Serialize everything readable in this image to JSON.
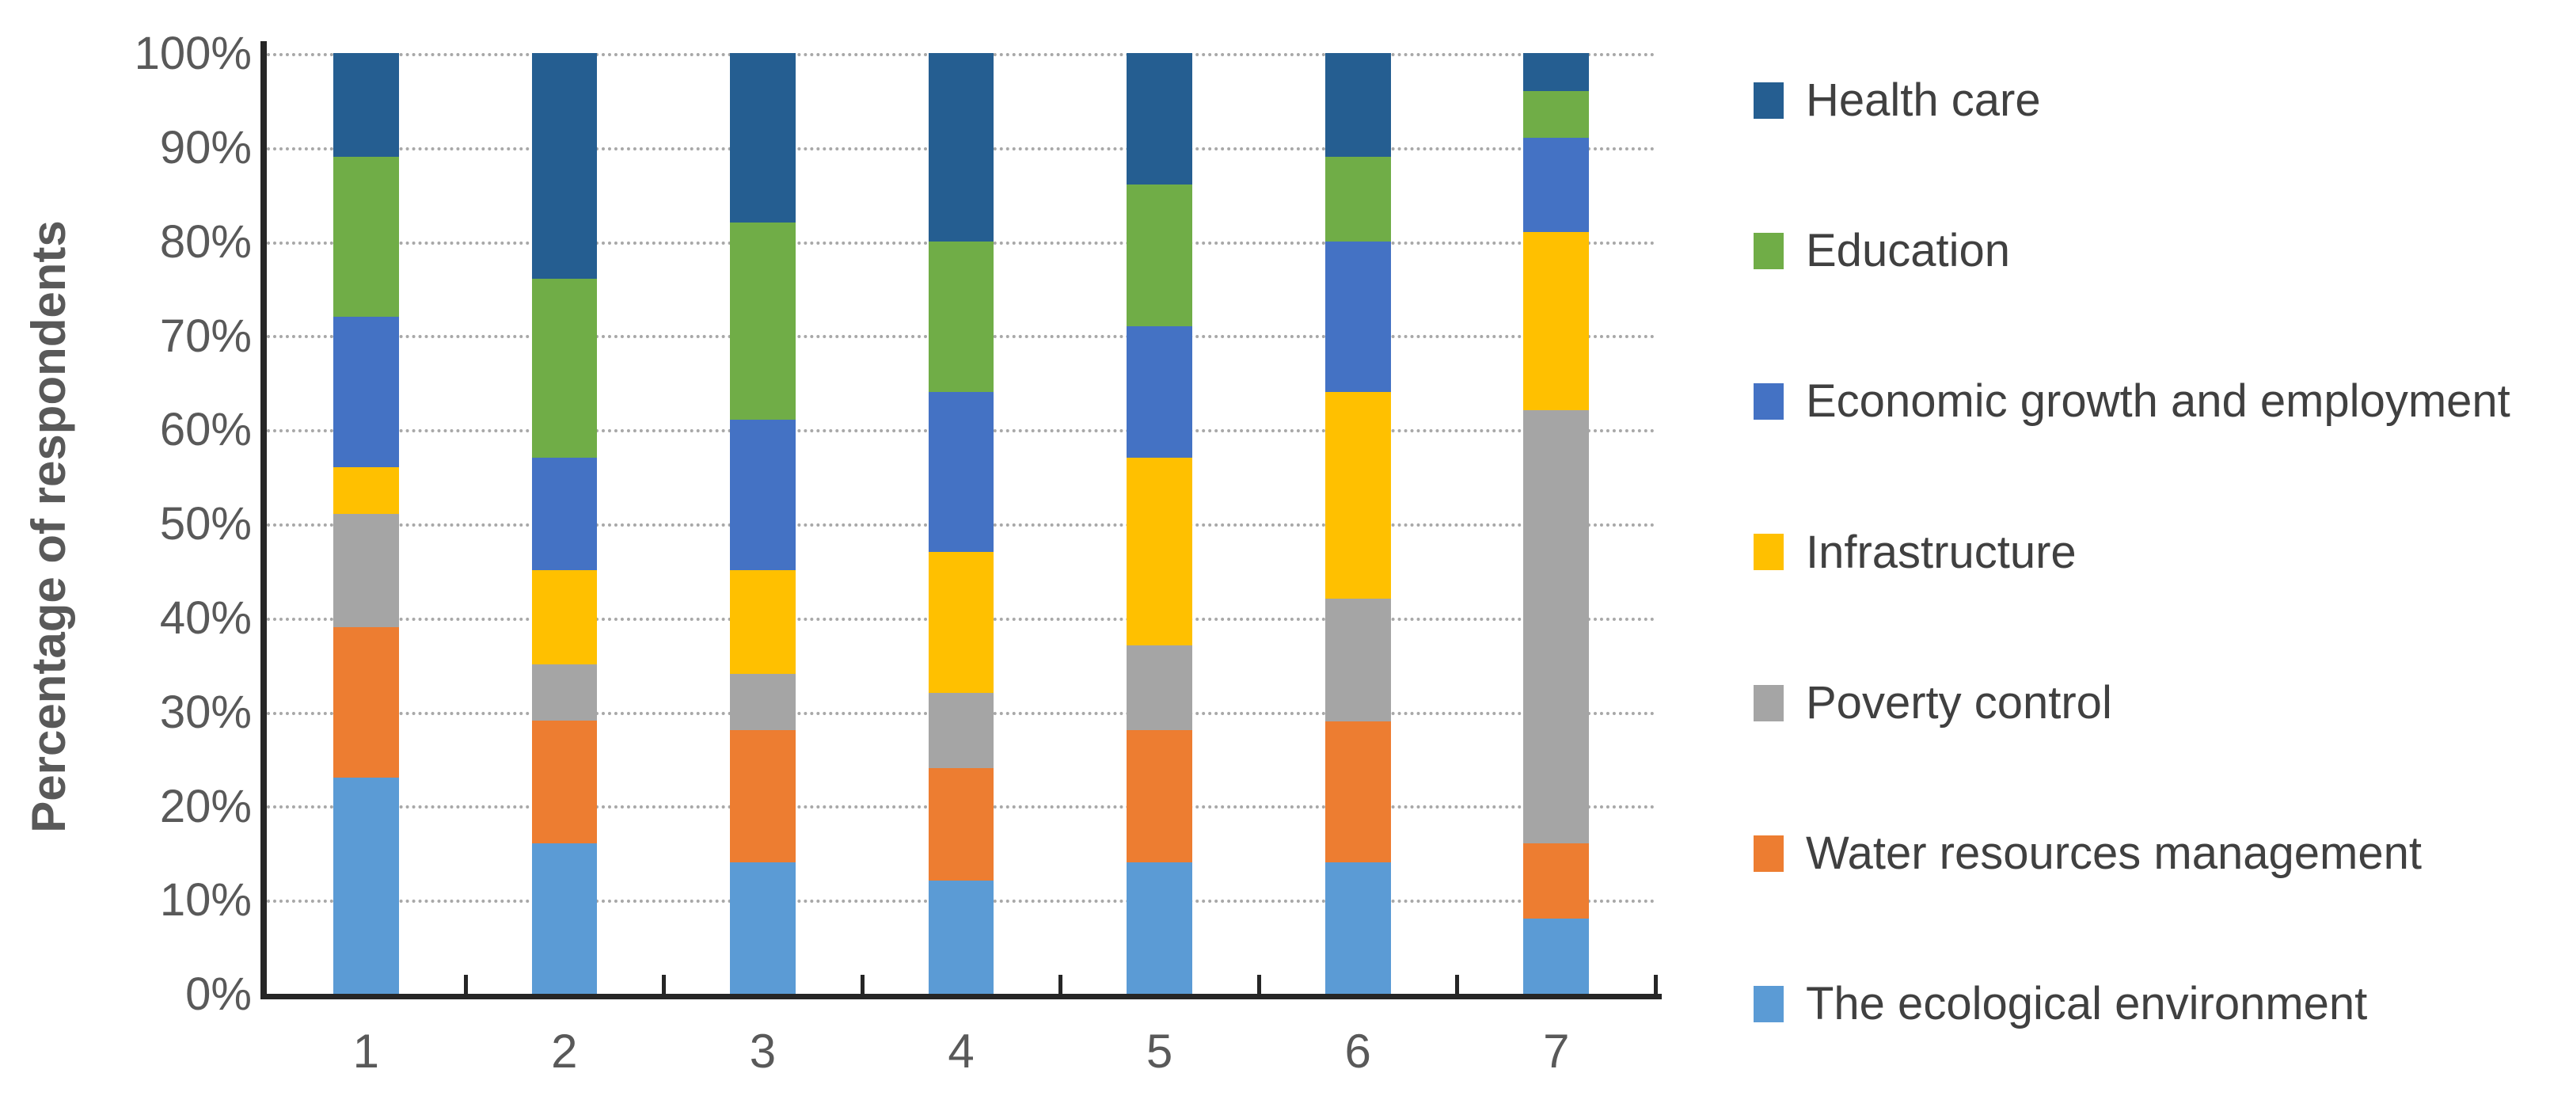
{
  "figure": {
    "background": "#ffffff"
  },
  "colors": {
    "axis_line": "#262626",
    "gridline": "#a8a8a8",
    "axis_text": "#595959",
    "legend_text": "#404040"
  },
  "chart_data": {
    "type": "bar",
    "subtype": "percent-stacked-column",
    "title": "",
    "xlabel": "",
    "ylabel": "Percentage of respondents",
    "ylim": [
      0,
      100
    ],
    "ytick_labels": [
      "0%",
      "10%",
      "20%",
      "30%",
      "40%",
      "50%",
      "60%",
      "70%",
      "80%",
      "90%",
      "100%"
    ],
    "grid": "horizontal-dotted",
    "legend_position": "right",
    "categories": [
      "1",
      "2",
      "3",
      "4",
      "5",
      "6",
      "7"
    ],
    "series": [
      {
        "name": "The ecological environment",
        "color": "#5B9BD5",
        "values": [
          23,
          16,
          14,
          12,
          14,
          14,
          8
        ]
      },
      {
        "name": "Water resources management",
        "color": "#ED7D31",
        "values": [
          16,
          13,
          14,
          12,
          14,
          15,
          8
        ]
      },
      {
        "name": "Poverty control",
        "color": "#A5A5A5",
        "values": [
          12,
          6,
          6,
          8,
          9,
          13,
          46
        ]
      },
      {
        "name": "Infrastructure",
        "color": "#FFC000",
        "values": [
          5,
          10,
          11,
          15,
          20,
          22,
          19
        ]
      },
      {
        "name": "Economic growth and employment",
        "color": "#4472C4",
        "values": [
          16,
          12,
          16,
          17,
          14,
          16,
          10
        ]
      },
      {
        "name": "Education",
        "color": "#70AD47",
        "values": [
          17,
          19,
          21,
          16,
          15,
          9,
          5
        ]
      },
      {
        "name": "Health care",
        "color": "#255E91",
        "values": [
          11,
          24,
          18,
          20,
          14,
          11,
          4
        ]
      }
    ],
    "legend_order": [
      "Health care",
      "Education",
      "Economic growth and employment",
      "Infrastructure",
      "Poverty control",
      "Water resources management",
      "The ecological environment"
    ]
  }
}
